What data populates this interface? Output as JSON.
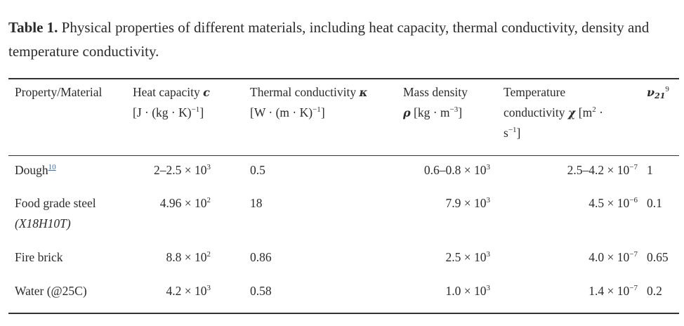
{
  "caption": {
    "label": "Table 1.",
    "text": "Physical properties of different materials, including heat capacity, thermal conductivity, density and temperature conductivity."
  },
  "table": {
    "headers": {
      "property": "Property/Material",
      "heat_name": "Heat capacity",
      "heat_symbol": "c",
      "heat_unit": "[J · (kg · K)",
      "heat_exp": "−1",
      "heat_close": "]",
      "thermal_name": "Thermal conductivity",
      "thermal_symbol": "κ",
      "thermal_unit": "[W · (m · K)",
      "thermal_exp": "−1",
      "thermal_close": "]",
      "mass_name": "Mass density",
      "mass_symbol": "ρ",
      "mass_unit": "[kg · m",
      "mass_exp": "−3",
      "mass_close": "]",
      "temp_name": "Temperature",
      "temp_line2": "conductivity",
      "temp_symbol": "χ",
      "temp_unit": "[m",
      "temp_unit_exp": "2",
      "temp_unit_dot": "·",
      "temp_line3": "s",
      "temp_line3_exp": "−1",
      "temp_line3_close": "]",
      "nu_symbol": "ν",
      "nu_sub": "21",
      "nu_sup": "9"
    },
    "rows": [
      {
        "material": "Dough",
        "material_ref": "10",
        "heat_mant": "2–2.5 × 10",
        "heat_exp": "3",
        "thermal": "0.5",
        "mass_mant": "0.6–0.8 × 10",
        "mass_exp": "3",
        "temp_mant": "2.5–4.2 × 10",
        "temp_exp": "−7",
        "nu": "1"
      },
      {
        "material": "Food grade steel",
        "material_line2": "(X18H10T)",
        "heat_mant": "4.96 × 10",
        "heat_exp": "2",
        "thermal": "18",
        "mass_mant": "7.9 × 10",
        "mass_exp": "3",
        "temp_mant": "4.5 × 10",
        "temp_exp": "−6",
        "nu": "0.1"
      },
      {
        "material": "Fire brick",
        "heat_mant": "8.8 × 10",
        "heat_exp": "2",
        "thermal": "0.86",
        "mass_mant": "2.5 × 10",
        "mass_exp": "3",
        "temp_mant": "4.0 × 10",
        "temp_exp": "−7",
        "nu": "0.65"
      },
      {
        "material": "Water (@25C)",
        "heat_mant": "4.2 × 10",
        "heat_exp": "3",
        "thermal": "0.58",
        "mass_mant": "1.0 × 10",
        "mass_exp": "3",
        "temp_mant": "1.4 × 10",
        "temp_exp": "−7",
        "nu": "0.2"
      }
    ]
  }
}
